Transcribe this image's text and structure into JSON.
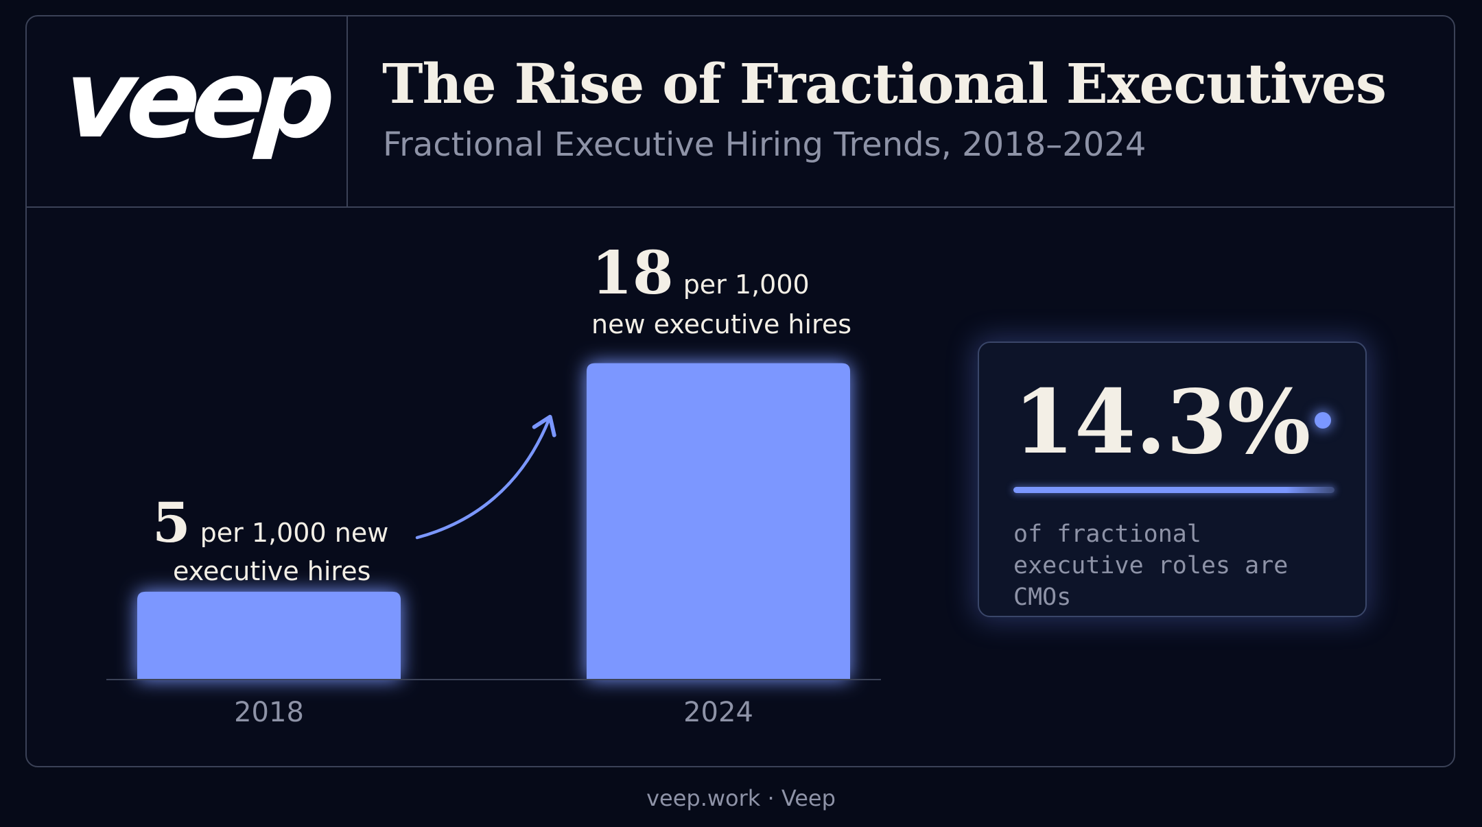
{
  "brand": {
    "logo_text": "veep"
  },
  "header": {
    "title": "The Rise of Fractional Executives",
    "subtitle": "Fractional Executive Hiring Trends, 2018–2024"
  },
  "chart_data": {
    "type": "bar",
    "categories": [
      "2018",
      "2024"
    ],
    "values": [
      5,
      18
    ],
    "unit": "per 1,000 new executive hires",
    "data_labels": [
      {
        "value": "5",
        "text_line1": "per 1,000 new",
        "text_line2": "executive hires"
      },
      {
        "value": "18",
        "text_line1": "per 1,000",
        "text_line2": "new executive hires"
      }
    ],
    "title": "",
    "xlabel": "",
    "ylabel": "",
    "ylim": [
      0,
      19
    ],
    "grid": false,
    "bar_color": "#7b97ff"
  },
  "stat": {
    "value": "14.3%",
    "percent": 14.3,
    "description": "of fractional executive roles are CMOs",
    "accent_color": "#7b97ff"
  },
  "footer": {
    "text": "veep.work · Veep"
  },
  "colors": {
    "background": "#060a18",
    "accent": "#7b97ff",
    "text": "#f3efe6",
    "muted": "#8e93a7",
    "border": "#3b4257"
  }
}
